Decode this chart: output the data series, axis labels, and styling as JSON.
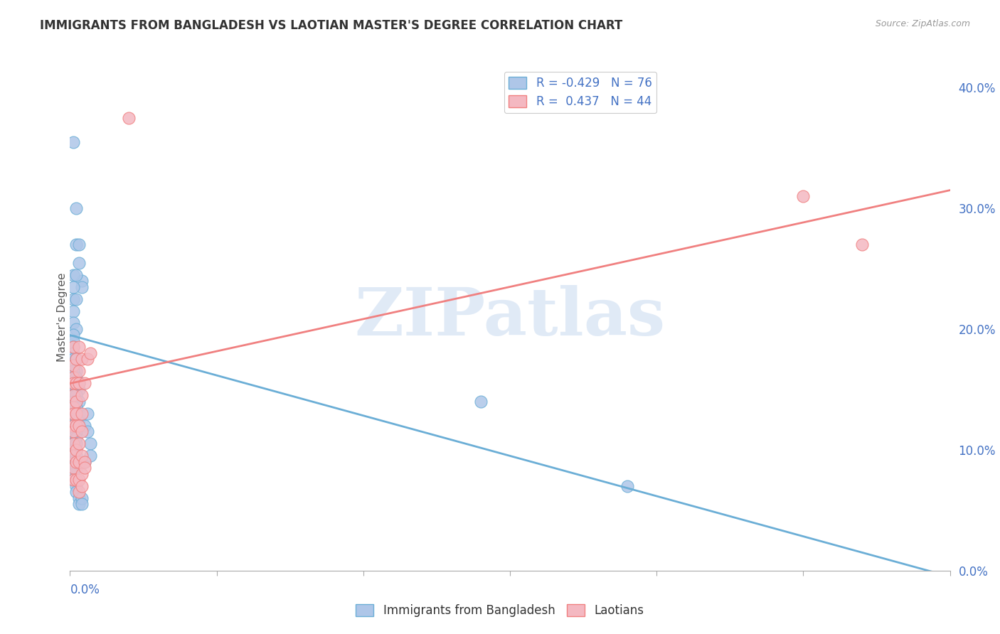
{
  "title": "IMMIGRANTS FROM BANGLADESH VS LAOTIAN MASTER'S DEGREE CORRELATION CHART",
  "source": "Source: ZipAtlas.com",
  "ylabel": "Master's Degree",
  "right_yticks": [
    "40.0%",
    "30.0%",
    "20.0%",
    "10.0%",
    "0.0%"
  ],
  "right_ytick_vals": [
    0.4,
    0.3,
    0.2,
    0.1,
    0.0
  ],
  "xlim": [
    0.0,
    0.3
  ],
  "ylim": [
    0.0,
    0.42
  ],
  "watermark": "ZIPatlas",
  "blue_color": "#aec6e8",
  "pink_color": "#f4b8c1",
  "blue_edge_color": "#6baed6",
  "pink_edge_color": "#f08080",
  "blue_line_color": "#6baed6",
  "pink_line_color": "#f08080",
  "blue_scatter": [
    [
      0.001,
      0.355
    ],
    [
      0.002,
      0.3
    ],
    [
      0.002,
      0.27
    ],
    [
      0.003,
      0.27
    ],
    [
      0.003,
      0.255
    ],
    [
      0.004,
      0.24
    ],
    [
      0.004,
      0.235
    ],
    [
      0.001,
      0.245
    ],
    [
      0.002,
      0.245
    ],
    [
      0.001,
      0.235
    ],
    [
      0.001,
      0.225
    ],
    [
      0.002,
      0.225
    ],
    [
      0.001,
      0.215
    ],
    [
      0.001,
      0.205
    ],
    [
      0.002,
      0.2
    ],
    [
      0.001,
      0.195
    ],
    [
      0.001,
      0.19
    ],
    [
      0.001,
      0.185
    ],
    [
      0.001,
      0.18
    ],
    [
      0.001,
      0.175
    ],
    [
      0.002,
      0.175
    ],
    [
      0.001,
      0.17
    ],
    [
      0.002,
      0.165
    ],
    [
      0.001,
      0.165
    ],
    [
      0.002,
      0.16
    ],
    [
      0.001,
      0.155
    ],
    [
      0.002,
      0.155
    ],
    [
      0.003,
      0.155
    ],
    [
      0.001,
      0.15
    ],
    [
      0.002,
      0.15
    ],
    [
      0.003,
      0.15
    ],
    [
      0.001,
      0.145
    ],
    [
      0.002,
      0.145
    ],
    [
      0.001,
      0.14
    ],
    [
      0.002,
      0.14
    ],
    [
      0.003,
      0.14
    ],
    [
      0.001,
      0.135
    ],
    [
      0.002,
      0.135
    ],
    [
      0.001,
      0.13
    ],
    [
      0.002,
      0.13
    ],
    [
      0.003,
      0.13
    ],
    [
      0.001,
      0.125
    ],
    [
      0.002,
      0.125
    ],
    [
      0.003,
      0.125
    ],
    [
      0.001,
      0.12
    ],
    [
      0.002,
      0.12
    ],
    [
      0.001,
      0.115
    ],
    [
      0.002,
      0.115
    ],
    [
      0.001,
      0.11
    ],
    [
      0.002,
      0.11
    ],
    [
      0.001,
      0.105
    ],
    [
      0.002,
      0.105
    ],
    [
      0.001,
      0.1
    ],
    [
      0.002,
      0.1
    ],
    [
      0.001,
      0.095
    ],
    [
      0.002,
      0.095
    ],
    [
      0.001,
      0.09
    ],
    [
      0.002,
      0.09
    ],
    [
      0.001,
      0.085
    ],
    [
      0.002,
      0.085
    ],
    [
      0.001,
      0.08
    ],
    [
      0.001,
      0.075
    ],
    [
      0.002,
      0.07
    ],
    [
      0.002,
      0.065
    ],
    [
      0.003,
      0.06
    ],
    [
      0.003,
      0.055
    ],
    [
      0.004,
      0.06
    ],
    [
      0.004,
      0.055
    ],
    [
      0.005,
      0.12
    ],
    [
      0.005,
      0.09
    ],
    [
      0.006,
      0.13
    ],
    [
      0.006,
      0.115
    ],
    [
      0.007,
      0.105
    ],
    [
      0.007,
      0.095
    ],
    [
      0.14,
      0.14
    ],
    [
      0.19,
      0.07
    ]
  ],
  "pink_scatter": [
    [
      0.001,
      0.185
    ],
    [
      0.001,
      0.17
    ],
    [
      0.001,
      0.16
    ],
    [
      0.001,
      0.155
    ],
    [
      0.001,
      0.145
    ],
    [
      0.001,
      0.135
    ],
    [
      0.001,
      0.13
    ],
    [
      0.001,
      0.12
    ],
    [
      0.001,
      0.115
    ],
    [
      0.001,
      0.105
    ],
    [
      0.001,
      0.095
    ],
    [
      0.001,
      0.085
    ],
    [
      0.001,
      0.075
    ],
    [
      0.002,
      0.175
    ],
    [
      0.002,
      0.155
    ],
    [
      0.002,
      0.14
    ],
    [
      0.002,
      0.13
    ],
    [
      0.002,
      0.12
    ],
    [
      0.002,
      0.1
    ],
    [
      0.002,
      0.09
    ],
    [
      0.002,
      0.075
    ],
    [
      0.003,
      0.185
    ],
    [
      0.003,
      0.165
    ],
    [
      0.003,
      0.155
    ],
    [
      0.003,
      0.12
    ],
    [
      0.003,
      0.105
    ],
    [
      0.003,
      0.09
    ],
    [
      0.003,
      0.075
    ],
    [
      0.003,
      0.065
    ],
    [
      0.004,
      0.175
    ],
    [
      0.004,
      0.145
    ],
    [
      0.004,
      0.13
    ],
    [
      0.004,
      0.115
    ],
    [
      0.004,
      0.095
    ],
    [
      0.004,
      0.08
    ],
    [
      0.004,
      0.07
    ],
    [
      0.005,
      0.155
    ],
    [
      0.005,
      0.09
    ],
    [
      0.005,
      0.085
    ],
    [
      0.006,
      0.175
    ],
    [
      0.007,
      0.18
    ],
    [
      0.02,
      0.375
    ],
    [
      0.25,
      0.31
    ],
    [
      0.27,
      0.27
    ]
  ],
  "blue_trend_x": [
    0.0,
    0.3
  ],
  "blue_trend_y": [
    0.195,
    -0.005
  ],
  "pink_trend_x": [
    0.0,
    0.3
  ],
  "pink_trend_y": [
    0.155,
    0.315
  ],
  "legend1_label": "R = -0.429   N = 76",
  "legend2_label": "R =  0.437   N = 44",
  "bottom_legend1": "Immigrants from Bangladesh",
  "bottom_legend2": "Laotians"
}
